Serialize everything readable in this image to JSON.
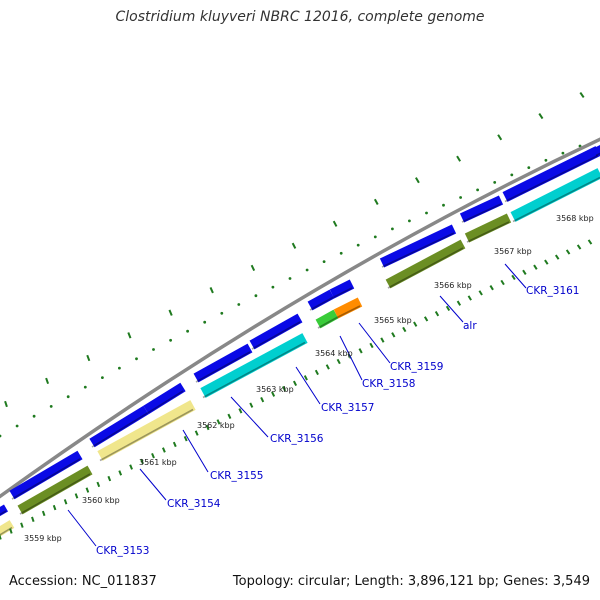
{
  "title": "Clostridium kluyveri NBRC 12016, complete genome",
  "footer": {
    "accession": "Accession: NC_011837",
    "summary": "Topology: circular; Length: 3,896,121 bp; Genes: 3,549"
  },
  "colors": {
    "blue_gene": "#0a0ae6",
    "olive_gene": "#6b8e23",
    "cyan_gene": "#00cfcf",
    "khaki_gene": "#f0e68c",
    "green_gene": "#39cc39",
    "orange_gene": "#ff8c00",
    "backbone": "#888888",
    "dash": "#1f7a1f",
    "label_text": "#0000cc",
    "scale_text": "#222222"
  },
  "scale_labels": [
    "3559 kbp",
    "3560 kbp",
    "3561 kbp",
    "3562 kbp",
    "3563 kbp",
    "3564 kbp",
    "3565 kbp",
    "3566 kbp",
    "3567 kbp",
    "3568 kbp"
  ],
  "gene_labels": [
    "CKR_3153",
    "CKR_3154",
    "CKR_3155",
    "CKR_3156",
    "CKR_3157",
    "CKR_3158",
    "CKR_3159",
    "alr",
    "CKR_3161"
  ]
}
